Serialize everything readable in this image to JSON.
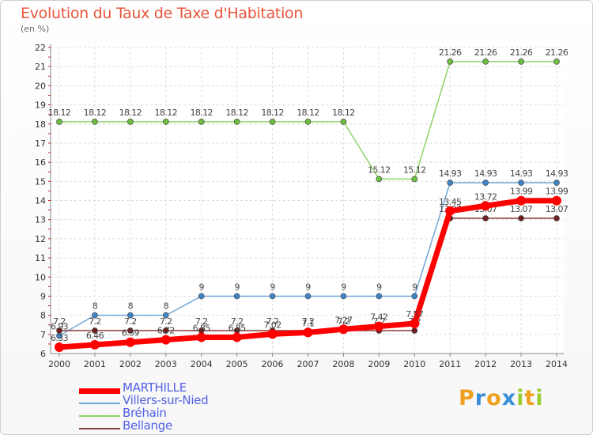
{
  "header": {
    "title": "Evolution du Taux de Taxe d'Habitation",
    "unit": "(en %)"
  },
  "brand": {
    "letters": [
      "P",
      "r",
      "o",
      "x",
      "i",
      "t",
      "i"
    ],
    "colors": [
      "#f0a020",
      "#3a8fd8",
      "#f0a020",
      "#3a8fd8",
      "#9acd32",
      "#f0a020",
      "#9acd32"
    ]
  },
  "chart_data": {
    "type": "line",
    "x": [
      "2000",
      "2001",
      "2002",
      "2003",
      "2004",
      "2005",
      "2006",
      "2007",
      "2008",
      "2009",
      "2010",
      "2011",
      "2012",
      "2013",
      "2014"
    ],
    "ylim": [
      6,
      22
    ],
    "yticks": [
      6,
      7,
      8,
      9,
      10,
      11,
      12,
      13,
      14,
      15,
      16,
      17,
      18,
      19,
      20,
      21,
      22
    ],
    "grid": true,
    "legend": "bottom-left",
    "series": [
      {
        "name": "Bréhain",
        "color": "#8fd36a",
        "marker": "#6cbf3e",
        "width": 1.5,
        "values": [
          18.12,
          18.12,
          18.12,
          18.12,
          18.12,
          18.12,
          18.12,
          18.12,
          18.12,
          15.12,
          15.12,
          21.26,
          21.26,
          21.26,
          21.26
        ],
        "labels": [
          "18.12",
          "18.12",
          "18.12",
          "18.12",
          "18.12",
          "18.12",
          "18.12",
          "18.12",
          "18.12",
          "15.12",
          "15.12",
          "21.26",
          "21.26",
          "21.26",
          "21.26"
        ]
      },
      {
        "name": "Villers-sur-Nied",
        "color": "#6fa6d6",
        "marker": "#3f84c6",
        "width": 1.5,
        "values": [
          6.93,
          8,
          8,
          8,
          9,
          9,
          9,
          9,
          9,
          9,
          9,
          14.93,
          14.93,
          14.93,
          14.93
        ],
        "labels": [
          "6.93",
          "8",
          "8",
          "8",
          "9",
          "9",
          "9",
          "9",
          "9",
          "9",
          "9",
          "14.93",
          "14.93",
          "14.93",
          "14.93"
        ]
      },
      {
        "name": "Bellange",
        "color": "#8a3a3a",
        "marker": "#6e2020",
        "width": 1.5,
        "values": [
          7.2,
          7.2,
          7.2,
          7.2,
          7.2,
          7.2,
          7.2,
          7.2,
          7.2,
          7.2,
          7.2,
          13.07,
          13.07,
          13.07,
          13.07
        ],
        "labels": [
          "7.2",
          "7.2",
          "7.2",
          "7.2",
          "7.2",
          "7.2",
          "7.2",
          "7.2",
          "7.2",
          "7.2",
          "7.2",
          "13.07",
          "13.07",
          "13.07",
          "13.07"
        ]
      },
      {
        "name": "MARTHILLE",
        "color": "#ff0000",
        "marker": "#ff0000",
        "width": 7,
        "values": [
          6.33,
          6.46,
          6.59,
          6.72,
          6.85,
          6.85,
          7.02,
          7.1,
          7.27,
          7.42,
          7.57,
          13.45,
          13.72,
          13.99,
          13.99
        ],
        "labels": [
          "6.33",
          "6.46",
          "6.59",
          "6.72",
          "6.85",
          "6.85",
          "7.02",
          "7.1",
          "7.27",
          "7.42",
          "7.57",
          "13.45",
          "13.72",
          "13.99",
          "13.99"
        ]
      }
    ]
  },
  "legend_items": [
    {
      "name": "MARTHILLE",
      "color": "#ff0000",
      "width": 7
    },
    {
      "name": "Villers-sur-Nied",
      "color": "#6fa6d6",
      "width": 2
    },
    {
      "name": "Bréhain",
      "color": "#8fd36a",
      "width": 2
    },
    {
      "name": "Bellange",
      "color": "#8a3a3a",
      "width": 2
    }
  ]
}
